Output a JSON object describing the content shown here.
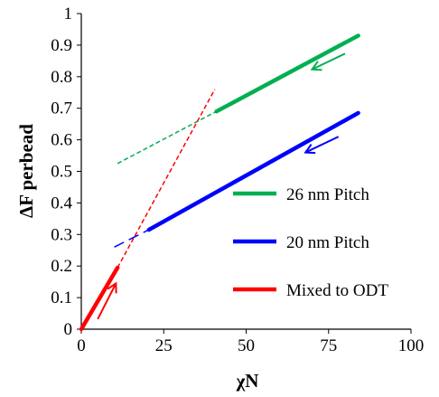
{
  "chart_data": {
    "type": "line",
    "xlabel": "χN",
    "ylabel": "ΔF perbead",
    "xlim": [
      0,
      100
    ],
    "ylim": [
      0,
      1
    ],
    "x_ticks": [
      0,
      25,
      50,
      75,
      100
    ],
    "y_ticks": [
      0,
      0.1,
      0.2,
      0.3,
      0.4,
      0.5,
      0.6,
      0.7,
      0.8,
      0.9,
      1
    ],
    "x_tick_labels": [
      "0",
      "25",
      "50",
      "75",
      "100"
    ],
    "y_tick_labels": [
      "0",
      "0.1",
      "0.2",
      "0.3",
      "0.4",
      "0.5",
      "0.6",
      "0.7",
      "0.8",
      "0.9",
      "1"
    ],
    "grid": false,
    "legend_position": "bottom-right",
    "colors": {
      "green": "#00b050",
      "blue": "#0000ff",
      "red": "#ff0000"
    },
    "series": [
      {
        "name": "26 nm Pitch",
        "color": "#00b050",
        "solid": [
          [
            41,
            0.69
          ],
          [
            84,
            0.93
          ]
        ],
        "dashed": [
          [
            11,
            0.525
          ],
          [
            41,
            0.69
          ]
        ],
        "arrow": {
          "from": [
            80,
            0.873
          ],
          "to": [
            70,
            0.823
          ]
        }
      },
      {
        "name": "20 nm Pitch",
        "color": "#0000ff",
        "solid": [
          [
            20.5,
            0.315
          ],
          [
            84,
            0.685
          ]
        ],
        "dashed": [
          [
            10,
            0.26
          ],
          [
            20.5,
            0.315
          ]
        ],
        "arrow": {
          "from": [
            78,
            0.61
          ],
          "to": [
            68,
            0.56
          ]
        }
      },
      {
        "name": "Mixed to ODT",
        "color": "#ff0000",
        "solid": [
          [
            0,
            0
          ],
          [
            11,
            0.195
          ]
        ],
        "dashed": [
          [
            11,
            0.195
          ],
          [
            40.5,
            0.76
          ]
        ],
        "arrow": {
          "from": [
            5,
            0.032
          ],
          "to": [
            10.5,
            0.145
          ]
        }
      }
    ]
  }
}
